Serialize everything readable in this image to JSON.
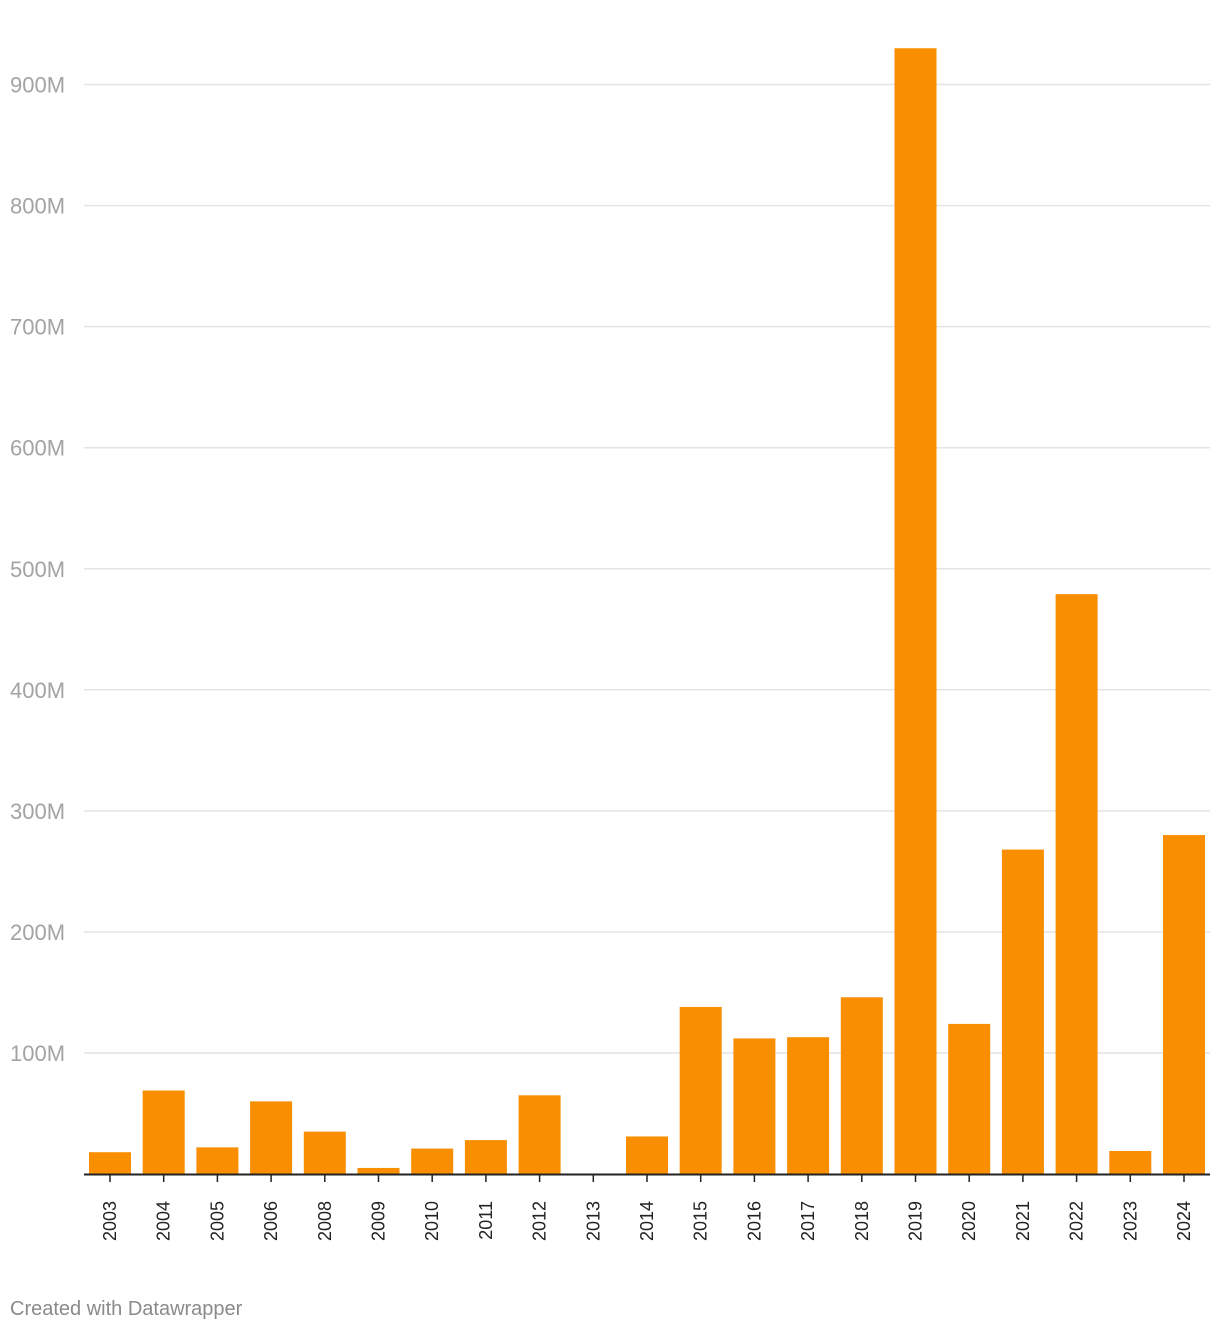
{
  "chart_data": {
    "type": "bar",
    "title": "",
    "xlabel": "",
    "ylabel": "",
    "ylim": [
      0,
      930
    ],
    "y_ticks": [
      {
        "value": 100,
        "label": "100M"
      },
      {
        "value": 200,
        "label": "200M"
      },
      {
        "value": 300,
        "label": "300M"
      },
      {
        "value": 400,
        "label": "400M"
      },
      {
        "value": 500,
        "label": "500M"
      },
      {
        "value": 600,
        "label": "600M"
      },
      {
        "value": 700,
        "label": "700M"
      },
      {
        "value": 800,
        "label": "800M"
      },
      {
        "value": 900,
        "label": "900M"
      }
    ],
    "categories": [
      "2003",
      "2004",
      "2005",
      "2006",
      "2008",
      "2009",
      "2010",
      "2011",
      "2012",
      "2013",
      "2014",
      "2015",
      "2016",
      "2017",
      "2018",
      "2019",
      "2020",
      "2021",
      "2022",
      "2023",
      "2024"
    ],
    "values": [
      18,
      69,
      22,
      60,
      35,
      5,
      21,
      28,
      65,
      0,
      31,
      138,
      112,
      113,
      146,
      930,
      124,
      268,
      479,
      19,
      280
    ],
    "value_unit": "M",
    "bar_color": "#f88e00",
    "grid": true
  },
  "footer": {
    "credit": "Created with Datawrapper"
  }
}
